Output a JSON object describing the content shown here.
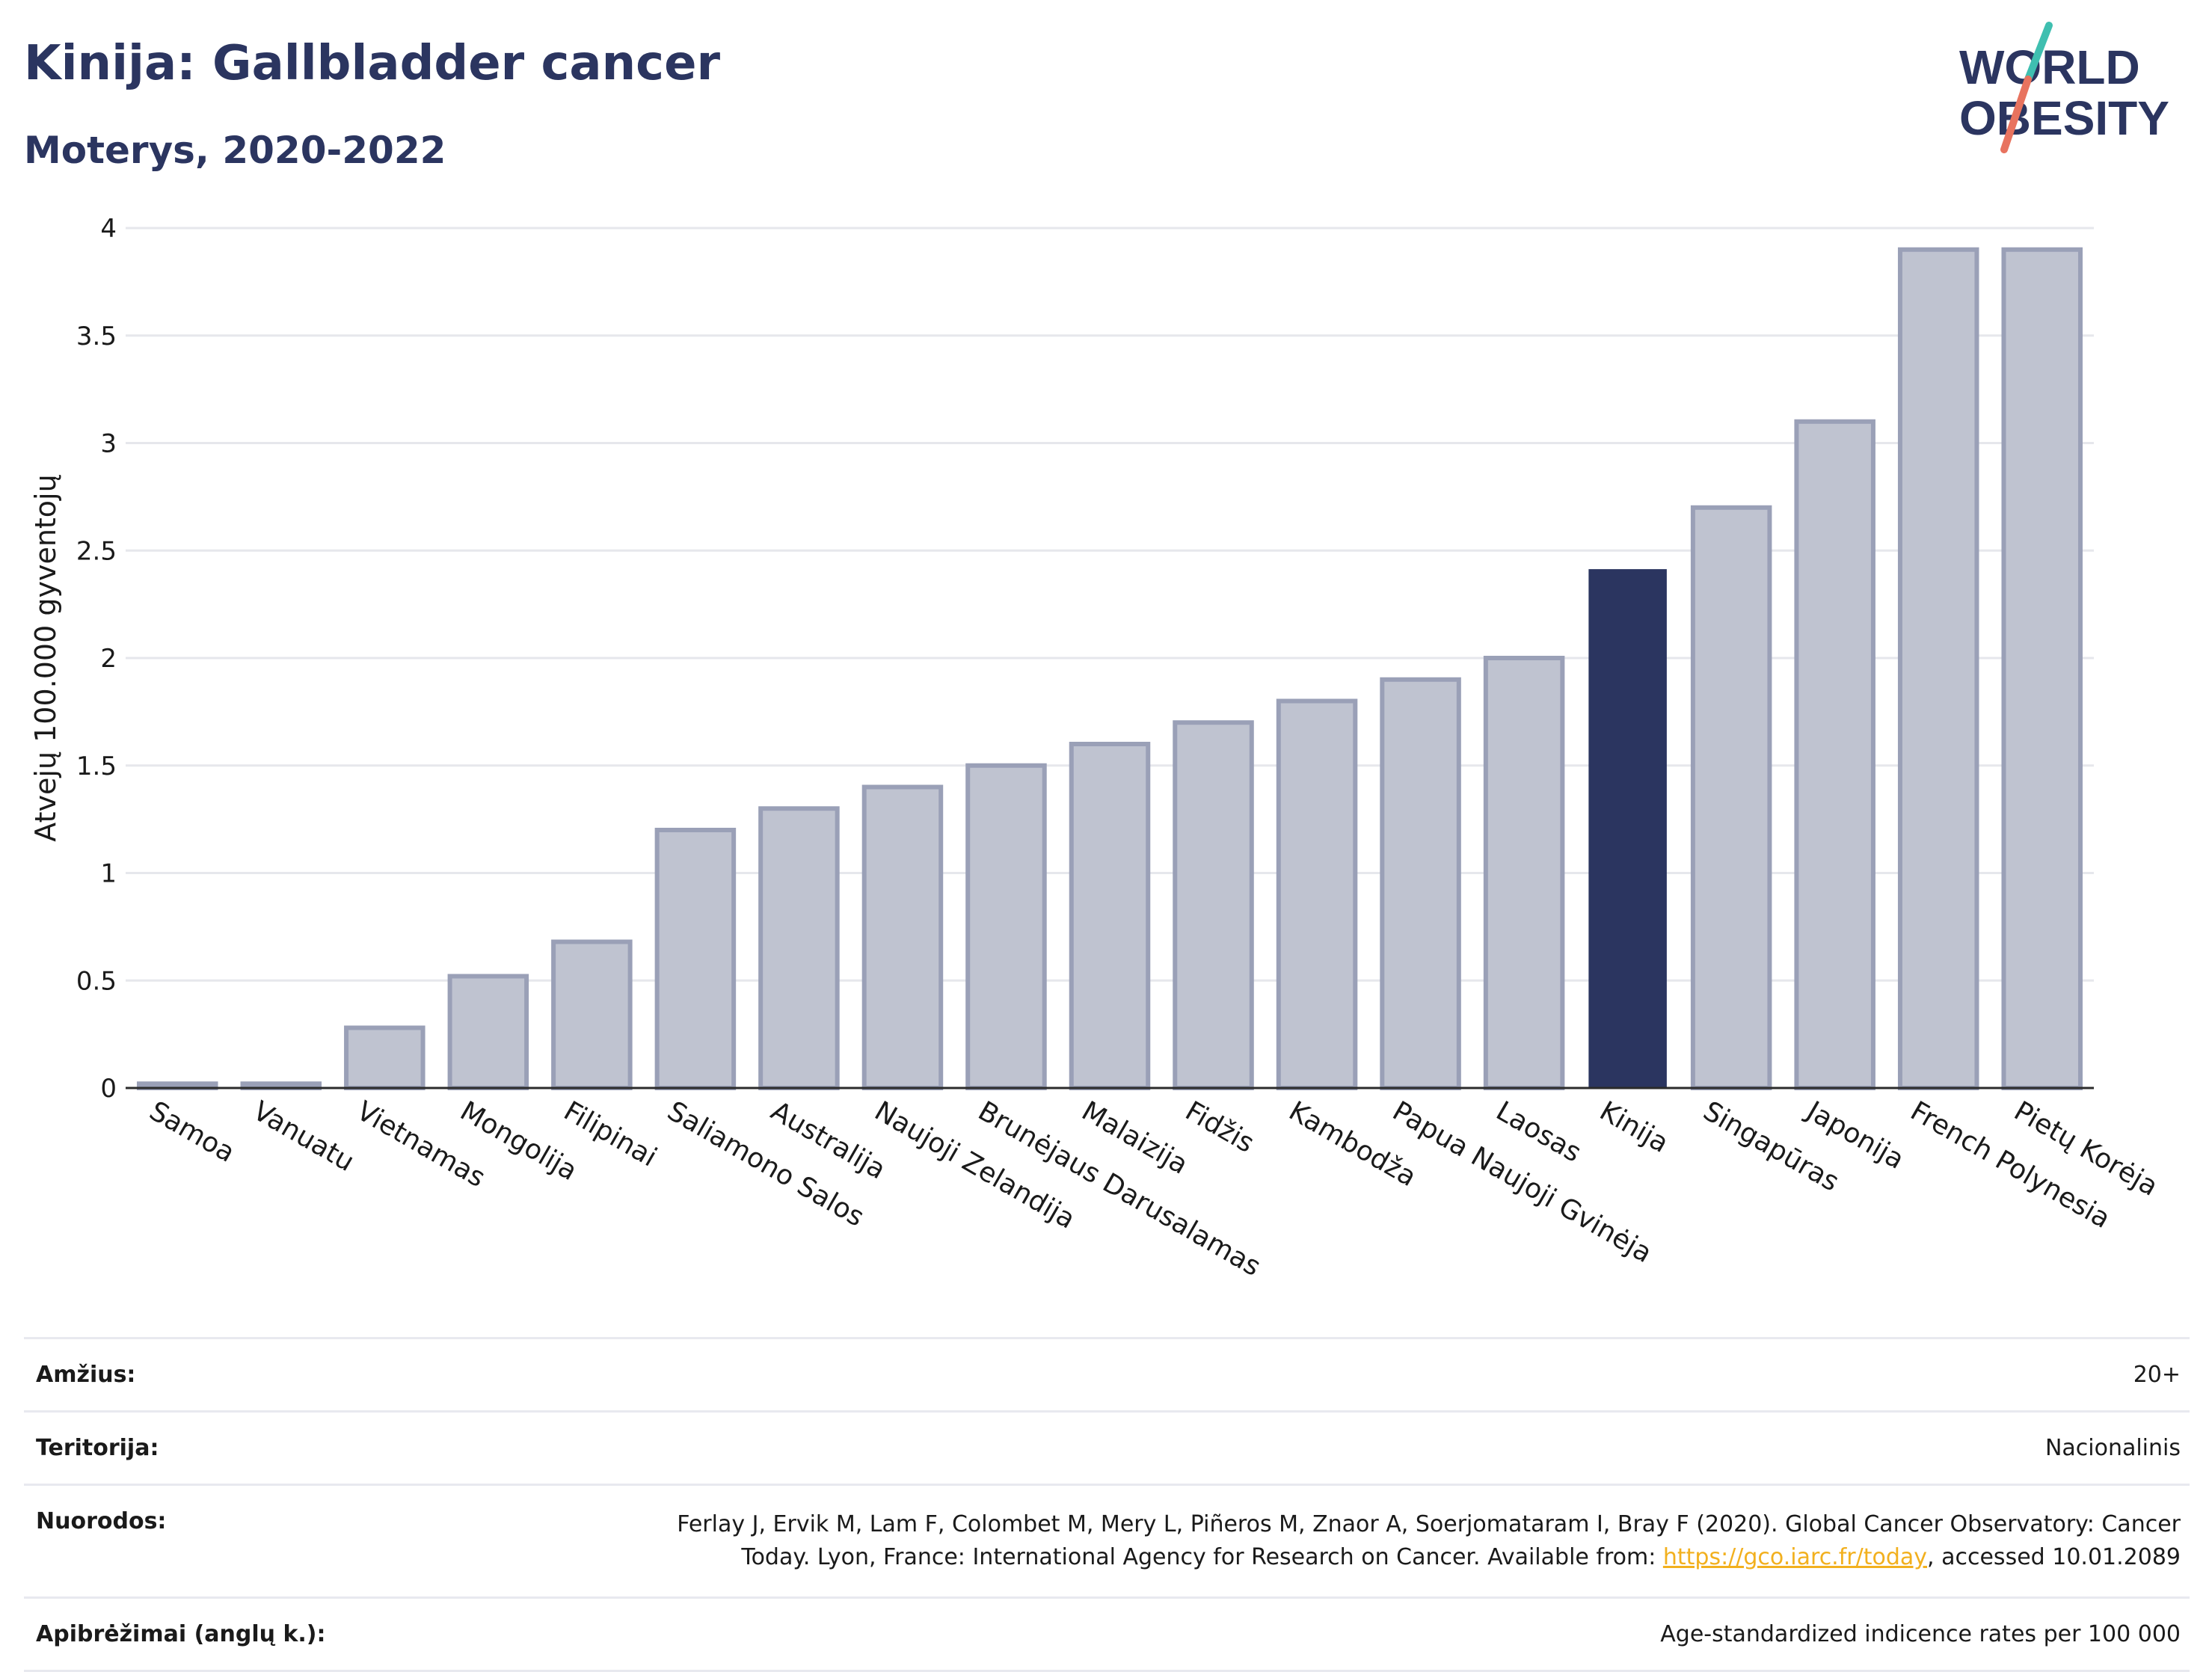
{
  "header": {
    "title": "Kinija: Gallbladder cancer",
    "subtitle": "Moterys, 2020-2022"
  },
  "logo": {
    "line1": "WORLD",
    "line2": "OBESITY"
  },
  "colors": {
    "navy": "#2b3560",
    "bar_fill": "#bfc3d0",
    "bar_stroke": "#9aa0b7",
    "highlight": "#2b3560",
    "logo_teal": "#3fbfb0",
    "logo_coral": "#e8735f",
    "link": "#f2b01e"
  },
  "chart_data": {
    "type": "bar",
    "title": "Kinija: Gallbladder cancer",
    "subtitle": "Moterys, 2020-2022",
    "ylabel": "Atvejų 100.000 gyventojų",
    "xlabel": "",
    "ylim": [
      0,
      4
    ],
    "yticks": [
      0,
      0.5,
      1,
      1.5,
      2,
      2.5,
      3,
      3.5,
      4
    ],
    "grid": true,
    "highlight_category": "Kinija",
    "categories": [
      "Samoa",
      "Vanuatu",
      "Vietnamas",
      "Mongolija",
      "Filipinai",
      "Saliamono Salos",
      "Australija",
      "Naujoji Zelandija",
      "Brunėjaus Darusalamas",
      "Malaizija",
      "Fidžis",
      "Kambodža",
      "Papua Naujoji Gvinėja",
      "Laosas",
      "Kinija",
      "Singapūras",
      "Japonija",
      "French Polynesia",
      "Pietų Korėja"
    ],
    "values": [
      0.02,
      0.02,
      0.28,
      0.52,
      0.68,
      1.2,
      1.3,
      1.4,
      1.5,
      1.6,
      1.7,
      1.8,
      1.9,
      2.0,
      2.41,
      2.7,
      3.1,
      3.9,
      3.9
    ]
  },
  "info": {
    "rows": [
      {
        "label": "Amžius:",
        "value": "20+"
      },
      {
        "label": "Teritorija:",
        "value": "Nacionalinis"
      },
      {
        "label": "Nuorodos:",
        "value_line1": "Ferlay J, Ervik M, Lam F, Colombet M, Mery L, Piñeros M, Znaor A, Soerjomataram I, Bray F (2020). Global Cancer Observatory: Cancer",
        "value_line2_pre": "Today. Lyon, France: International Agency for Research on Cancer. Available from: ",
        "link": "https://gco.iarc.fr/today",
        "value_line2_post": ", accessed 10.01.2089"
      },
      {
        "label": "Apibrėžimai (anglų k.):",
        "value": "Age-standardized indicence rates per 100 000"
      }
    ]
  }
}
